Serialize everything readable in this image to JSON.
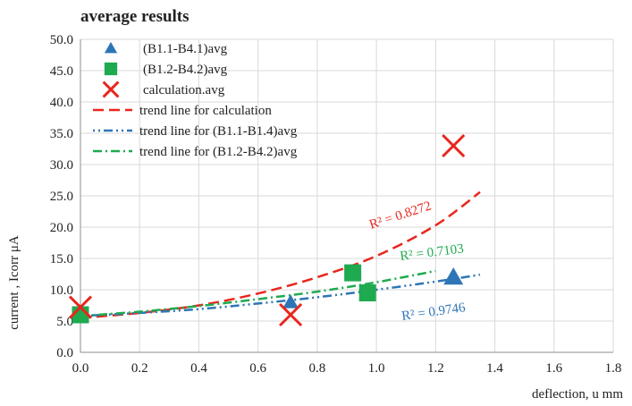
{
  "chart_data": {
    "type": "scatter",
    "title": "average results",
    "xlabel": "deflection, u mm",
    "ylabel": "current , Icorr μA",
    "xlim": [
      0.0,
      1.8
    ],
    "ylim": [
      0.0,
      50.0
    ],
    "x_ticks": [
      0.0,
      0.2,
      0.4,
      0.6,
      0.8,
      1.0,
      1.2,
      1.4,
      1.6,
      1.8
    ],
    "y_ticks": [
      0.0,
      5.0,
      10.0,
      15.0,
      20.0,
      25.0,
      30.0,
      35.0,
      40.0,
      45.0,
      50.0
    ],
    "x_tick_labels": [
      "0.0",
      "0.2",
      "0.4",
      "0.6",
      "0.8",
      "1.0",
      "1.2",
      "1.4",
      "1.6",
      "1.8"
    ],
    "y_tick_labels": [
      "0.0",
      "5.0",
      "10.0",
      "15.0",
      "20.0",
      "25.0",
      "30.0",
      "35.0",
      "40.0",
      "45.0",
      "50.0"
    ],
    "grid": true,
    "legend_position": "top-left",
    "series": [
      {
        "name": "(B1.1-B4.1)avg",
        "marker": "triangle",
        "color": "#2e75b6",
        "points": [
          [
            0.0,
            6.0
          ],
          [
            0.71,
            8.0
          ],
          [
            1.26,
            12.0
          ]
        ]
      },
      {
        "name": "(B1.2-B4.2)avg",
        "marker": "square",
        "color": "#1faa50",
        "points": [
          [
            0.0,
            6.0
          ],
          [
            0.92,
            12.7
          ],
          [
            0.97,
            9.5
          ]
        ]
      },
      {
        "name": "calculation.avg",
        "marker": "cross",
        "color": "#e8261c",
        "points": [
          [
            0.0,
            7.2
          ],
          [
            0.71,
            6.0
          ],
          [
            1.26,
            33.0
          ]
        ]
      }
    ],
    "trendlines": [
      {
        "name": "trend line for calculation",
        "color": "#e8261c",
        "dash": "dash",
        "r2": "R² = 0.8272",
        "points": [
          [
            0.0,
            5.5
          ],
          [
            0.2,
            6.3
          ],
          [
            0.4,
            7.5
          ],
          [
            0.6,
            9.4
          ],
          [
            0.8,
            12.0
          ],
          [
            1.0,
            15.4
          ],
          [
            1.2,
            20.3
          ],
          [
            1.35,
            25.6
          ]
        ]
      },
      {
        "name": "trend line for (B1.1-B1.4)avg",
        "color": "#2e75b6",
        "dash": "dot-dot-dash",
        "r2": "R² = 0.9746",
        "points": [
          [
            0.0,
            5.8
          ],
          [
            0.2,
            6.3
          ],
          [
            0.4,
            6.9
          ],
          [
            0.6,
            7.8
          ],
          [
            0.8,
            8.8
          ],
          [
            1.0,
            10.0
          ],
          [
            1.2,
            11.3
          ],
          [
            1.35,
            12.4
          ]
        ]
      },
      {
        "name": "trend line for (B1.2-B4.2)avg",
        "color": "#1faa50",
        "dash": "dash-dot",
        "r2": "R² = 0.7103",
        "points": [
          [
            0.0,
            5.8
          ],
          [
            0.2,
            6.5
          ],
          [
            0.4,
            7.4
          ],
          [
            0.6,
            8.5
          ],
          [
            0.8,
            9.7
          ],
          [
            1.0,
            11.2
          ],
          [
            1.2,
            13.0
          ]
        ]
      }
    ]
  }
}
